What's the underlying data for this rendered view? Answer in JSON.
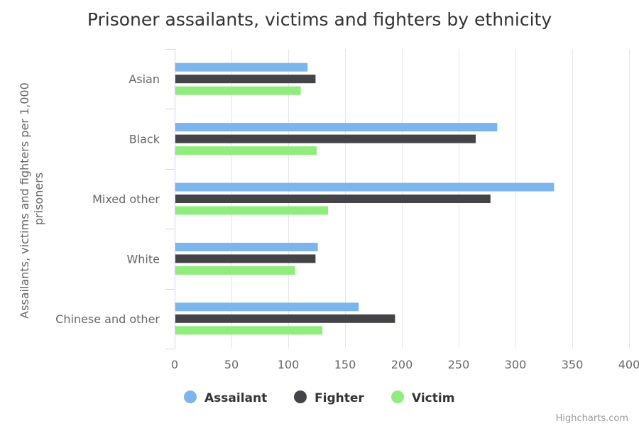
{
  "chart_data": {
    "type": "bar",
    "orientation": "horizontal",
    "title": "Prisoner assailants, victims and fighters by ethnicity",
    "ylabel_lines": [
      "Assailants, victims and fighters per 1,000",
      "prisoners"
    ],
    "categories": [
      "Asian",
      "Black",
      "Mixed other",
      "White",
      "Chinese and other"
    ],
    "series": [
      {
        "name": "Assailant",
        "color": "#7cb5ec",
        "values": [
          117,
          284,
          334,
          126,
          162
        ]
      },
      {
        "name": "Fighter",
        "color": "#434348",
        "values": [
          124,
          265,
          278,
          124,
          194
        ]
      },
      {
        "name": "Victim",
        "color": "#90ed7d",
        "values": [
          111,
          125,
          135,
          106,
          130
        ]
      }
    ],
    "xlim": [
      0,
      400
    ],
    "ticks": [
      0,
      50,
      100,
      150,
      200,
      250,
      300,
      350,
      400
    ],
    "grid": true,
    "legend_position": "bottom-center"
  },
  "credit": "Highcharts.com"
}
